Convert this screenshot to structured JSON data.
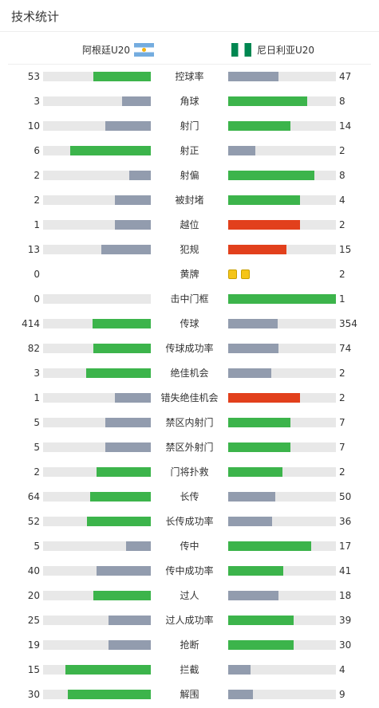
{
  "header": {
    "title": "技术统计"
  },
  "teams": {
    "home": "阿根廷U20",
    "away": "尼日利亚U20"
  },
  "colors": {
    "green": "#3cb44b",
    "gray": "#929cae",
    "red": "#e2401c",
    "track": "#e8e8e8",
    "yellow_card": "#f5c518"
  },
  "stats": [
    {
      "label": "控球率",
      "home": "53",
      "away": "47",
      "home_ratio": 0.53,
      "away_ratio": 0.47,
      "home_color": "green",
      "away_color": "gray"
    },
    {
      "label": "角球",
      "home": "3",
      "away": "8",
      "home_ratio": 0.27,
      "away_ratio": 0.73,
      "home_color": "gray",
      "away_color": "green"
    },
    {
      "label": "射门",
      "home": "10",
      "away": "14",
      "home_ratio": 0.42,
      "away_ratio": 0.58,
      "home_color": "gray",
      "away_color": "green"
    },
    {
      "label": "射正",
      "home": "6",
      "away": "2",
      "home_ratio": 0.75,
      "away_ratio": 0.25,
      "home_color": "green",
      "away_color": "gray"
    },
    {
      "label": "射偏",
      "home": "2",
      "away": "8",
      "home_ratio": 0.2,
      "away_ratio": 0.8,
      "home_color": "gray",
      "away_color": "green"
    },
    {
      "label": "被封堵",
      "home": "2",
      "away": "4",
      "home_ratio": 0.33,
      "away_ratio": 0.67,
      "home_color": "gray",
      "away_color": "green"
    },
    {
      "label": "越位",
      "home": "1",
      "away": "2",
      "home_ratio": 0.33,
      "away_ratio": 0.67,
      "home_color": "gray",
      "away_color": "red"
    },
    {
      "label": "犯规",
      "home": "13",
      "away": "15",
      "home_ratio": 0.46,
      "away_ratio": 0.54,
      "home_color": "gray",
      "away_color": "red"
    },
    {
      "label": "黄牌",
      "home": "0",
      "away": "2",
      "cards": true,
      "away_cards": 2
    },
    {
      "label": "击中门框",
      "home": "0",
      "away": "1",
      "home_ratio": 0,
      "away_ratio": 1,
      "home_color": "gray",
      "away_color": "green"
    },
    {
      "label": "传球",
      "home": "414",
      "away": "354",
      "home_ratio": 0.54,
      "away_ratio": 0.46,
      "home_color": "green",
      "away_color": "gray"
    },
    {
      "label": "传球成功率",
      "home": "82",
      "away": "74",
      "home_ratio": 0.53,
      "away_ratio": 0.47,
      "home_color": "green",
      "away_color": "gray"
    },
    {
      "label": "绝佳机会",
      "home": "3",
      "away": "2",
      "home_ratio": 0.6,
      "away_ratio": 0.4,
      "home_color": "green",
      "away_color": "gray"
    },
    {
      "label": "错失绝佳机会",
      "home": "1",
      "away": "2",
      "home_ratio": 0.33,
      "away_ratio": 0.67,
      "home_color": "gray",
      "away_color": "red"
    },
    {
      "label": "禁区内射门",
      "home": "5",
      "away": "7",
      "home_ratio": 0.42,
      "away_ratio": 0.58,
      "home_color": "gray",
      "away_color": "green"
    },
    {
      "label": "禁区外射门",
      "home": "5",
      "away": "7",
      "home_ratio": 0.42,
      "away_ratio": 0.58,
      "home_color": "gray",
      "away_color": "green"
    },
    {
      "label": "门将扑救",
      "home": "2",
      "away": "2",
      "home_ratio": 0.5,
      "away_ratio": 0.5,
      "home_color": "green",
      "away_color": "green"
    },
    {
      "label": "长传",
      "home": "64",
      "away": "50",
      "home_ratio": 0.56,
      "away_ratio": 0.44,
      "home_color": "green",
      "away_color": "gray"
    },
    {
      "label": "长传成功率",
      "home": "52",
      "away": "36",
      "home_ratio": 0.59,
      "away_ratio": 0.41,
      "home_color": "green",
      "away_color": "gray"
    },
    {
      "label": "传中",
      "home": "5",
      "away": "17",
      "home_ratio": 0.23,
      "away_ratio": 0.77,
      "home_color": "gray",
      "away_color": "green"
    },
    {
      "label": "传中成功率",
      "home": "40",
      "away": "41",
      "home_ratio": 0.5,
      "away_ratio": 0.51,
      "home_color": "gray",
      "away_color": "green"
    },
    {
      "label": "过人",
      "home": "20",
      "away": "18",
      "home_ratio": 0.53,
      "away_ratio": 0.47,
      "home_color": "green",
      "away_color": "gray"
    },
    {
      "label": "过人成功率",
      "home": "25",
      "away": "39",
      "home_ratio": 0.39,
      "away_ratio": 0.61,
      "home_color": "gray",
      "away_color": "green"
    },
    {
      "label": "抢断",
      "home": "19",
      "away": "30",
      "home_ratio": 0.39,
      "away_ratio": 0.61,
      "home_color": "gray",
      "away_color": "green"
    },
    {
      "label": "拦截",
      "home": "15",
      "away": "4",
      "home_ratio": 0.79,
      "away_ratio": 0.21,
      "home_color": "green",
      "away_color": "gray"
    },
    {
      "label": "解围",
      "home": "30",
      "away": "9",
      "home_ratio": 0.77,
      "away_ratio": 0.23,
      "home_color": "green",
      "away_color": "gray"
    }
  ]
}
